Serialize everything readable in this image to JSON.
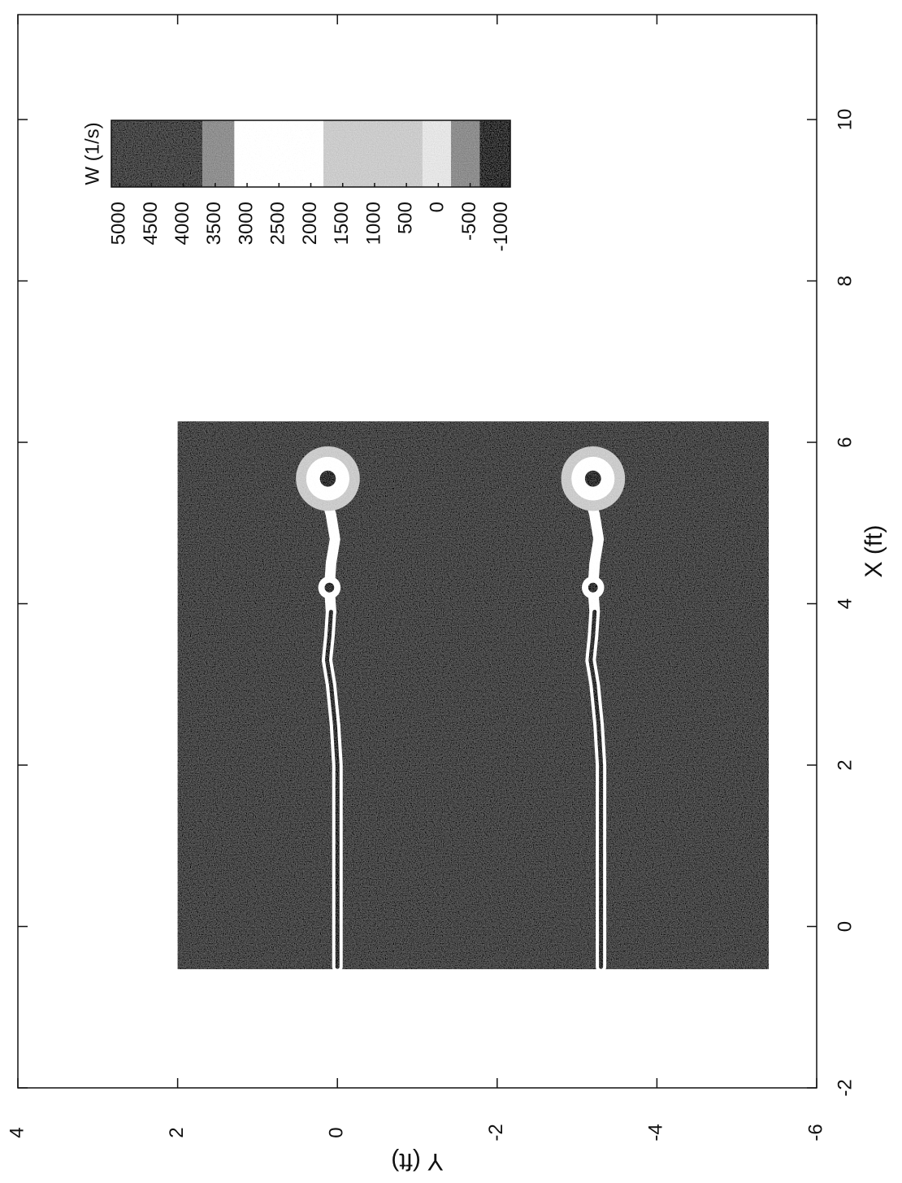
{
  "chart_data": {
    "type": "contour",
    "xlabel": "X (ft)",
    "ylabel": "Y (ft)",
    "xlim": [
      -2,
      11.3
    ],
    "ylim": [
      -6,
      4
    ],
    "xticks": [
      -2,
      0,
      2,
      4,
      6,
      8,
      10
    ],
    "yticks": [
      -6,
      -4,
      -2,
      0,
      2,
      4
    ],
    "colorbar": {
      "title": "W (1/s)",
      "clim": [
        -1130,
        5130
      ],
      "ticks": [
        5000,
        4500,
        4000,
        3500,
        3000,
        2500,
        2000,
        1500,
        1000,
        500,
        0,
        -500,
        -1000
      ],
      "bands": [
        {
          "from": 5130,
          "to": 3700,
          "color": "#3c3c3c"
        },
        {
          "from": 3700,
          "to": 3200,
          "color": "#8a8a8a"
        },
        {
          "from": 3200,
          "to": 1800,
          "color": "#ffffff"
        },
        {
          "from": 1800,
          "to": 250,
          "color": "#c8c8c8"
        },
        {
          "from": 250,
          "to": -200,
          "color": "#e2e2e2"
        },
        {
          "from": -200,
          "to": -650,
          "color": "#888888"
        },
        {
          "from": -650,
          "to": -1130,
          "color": "#222222"
        }
      ]
    },
    "field": {
      "x": [
        -0.53,
        6.26
      ],
      "y": [
        -5.4,
        2.0
      ],
      "value": 4300
    },
    "sheets": [
      {
        "x": [
          -0.5,
          0,
          1,
          2,
          2.5,
          3,
          3.3,
          3.6,
          3.9,
          4.2,
          4.5,
          4.8,
          5.1,
          5.35
        ],
        "y": [
          0,
          0,
          0,
          0,
          0.03,
          0.08,
          0.13,
          0.1,
          0.08,
          0.1,
          0.08,
          0.03,
          0.08,
          0.15
        ],
        "value": 2500
      },
      {
        "x": [
          -0.5,
          0,
          1,
          2,
          2.5,
          3,
          3.3,
          3.6,
          3.9,
          4.2,
          4.5,
          4.8,
          5.1,
          5.35
        ],
        "y": [
          -3.3,
          -3.3,
          -3.3,
          -3.3,
          -3.27,
          -3.22,
          -3.17,
          -3.2,
          -3.22,
          -3.2,
          -3.22,
          -3.27,
          -3.22,
          -3.15
        ],
        "value": 2500
      },
      {
        "x": [
          -0.5,
          0,
          1,
          2,
          2.5,
          3,
          3.3,
          3.6,
          3.9
        ],
        "y": [
          0,
          0,
          0,
          0,
          0.03,
          0.08,
          0.13,
          0.1,
          0.08
        ],
        "value": -1000
      },
      {
        "x": [
          -0.5,
          0,
          1,
          2,
          2.5,
          3,
          3.3,
          3.6,
          3.9
        ],
        "y": [
          -3.3,
          -3.3,
          -3.3,
          -3.3,
          -3.27,
          -3.22,
          -3.17,
          -3.2,
          -3.22
        ],
        "value": -1000
      }
    ],
    "vortices": [
      {
        "x": 5.55,
        "y": 0.12,
        "r": 0.4,
        "value": 1000
      },
      {
        "x": 5.55,
        "y": 0.12,
        "r": 0.27,
        "value": 2500
      },
      {
        "x": 5.55,
        "y": 0.12,
        "r": 0.1,
        "value": -1000
      },
      {
        "x": 4.2,
        "y": 0.1,
        "r": 0.14,
        "value": 2500
      },
      {
        "x": 4.2,
        "y": 0.1,
        "r": 0.06,
        "value": -1000
      },
      {
        "x": 5.55,
        "y": -3.2,
        "r": 0.4,
        "value": 1000
      },
      {
        "x": 5.55,
        "y": -3.2,
        "r": 0.27,
        "value": 2500
      },
      {
        "x": 5.55,
        "y": -3.2,
        "r": 0.1,
        "value": -1000
      },
      {
        "x": 4.2,
        "y": -3.2,
        "r": 0.14,
        "value": 2500
      },
      {
        "x": 4.2,
        "y": -3.2,
        "r": 0.06,
        "value": -1000
      }
    ]
  }
}
